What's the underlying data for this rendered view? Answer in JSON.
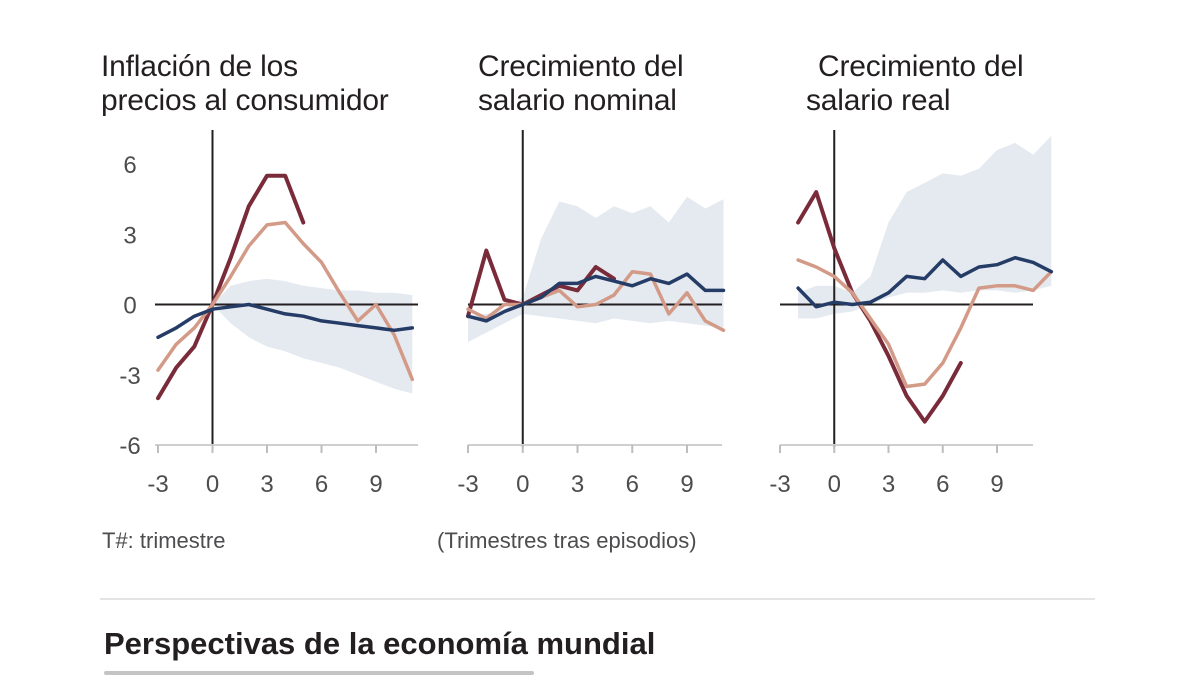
{
  "header_fragment": {
    "text": ""
  },
  "footnotes": {
    "left": "T#: trimestre",
    "center": "(Trimestres tras episodios)"
  },
  "footer": {
    "title": "Perspectivas de la economía mundial"
  },
  "colors": {
    "dark_red": "#7a2b3a",
    "light_red": "#d39a87",
    "navy": "#253c66",
    "band": "#e5eaf1",
    "axis": "#231f20"
  },
  "chart_data": [
    {
      "type": "line",
      "title": [
        "Inflación de los",
        "precios al consumidor"
      ],
      "xlim": [
        -3,
        11
      ],
      "ylim": [
        -6,
        6
      ],
      "xticks": [
        -3,
        0,
        3,
        6,
        9
      ],
      "yticks": [
        6,
        3,
        0,
        -3,
        -6
      ],
      "band": {
        "x": [
          0,
          1,
          2,
          3,
          4,
          5,
          6,
          7,
          8,
          9,
          10,
          11
        ],
        "upper": [
          0,
          0.8,
          1.0,
          1.1,
          1.0,
          0.8,
          0.7,
          0.6,
          0.6,
          0.5,
          0.5,
          0.4
        ],
        "lower": [
          0,
          -0.8,
          -1.4,
          -1.8,
          -2.0,
          -2.3,
          -2.5,
          -2.7,
          -3.0,
          -3.3,
          -3.6,
          -3.8
        ]
      },
      "series": [
        {
          "color_key": "dark_red",
          "x": [
            -3,
            -2,
            -1,
            0,
            1,
            2,
            3,
            4,
            5
          ],
          "values": [
            -4.0,
            -2.7,
            -1.8,
            0.0,
            2.0,
            4.2,
            5.5,
            5.5,
            3.5
          ]
        },
        {
          "color_key": "light_red",
          "x": [
            -3,
            -2,
            -1,
            0,
            1,
            2,
            3,
            4,
            5,
            6,
            7,
            8,
            9,
            10,
            11
          ],
          "values": [
            -2.8,
            -1.7,
            -1.0,
            0.0,
            1.2,
            2.5,
            3.4,
            3.5,
            2.6,
            1.8,
            0.5,
            -0.7,
            0.0,
            -1.3,
            -3.2
          ]
        },
        {
          "color_key": "navy",
          "x": [
            -3,
            -2,
            -1,
            0,
            1,
            2,
            3,
            4,
            5,
            6,
            7,
            8,
            9,
            10,
            11
          ],
          "values": [
            -1.4,
            -1.0,
            -0.5,
            -0.2,
            -0.1,
            0.0,
            -0.2,
            -0.4,
            -0.5,
            -0.7,
            -0.8,
            -0.9,
            -1.0,
            -1.1,
            -1.0
          ]
        }
      ]
    },
    {
      "type": "line",
      "title": [
        "Crecimiento del",
        "salario nominal"
      ],
      "xlim": [
        -3,
        11
      ],
      "ylim": [
        -6,
        6
      ],
      "xticks": [
        -3,
        0,
        3,
        6,
        9
      ],
      "yticks": [
        6,
        3,
        0,
        -3,
        -6
      ],
      "band": {
        "x": [
          -3,
          -2,
          -1,
          0,
          1,
          2,
          3,
          4,
          5,
          6,
          7,
          8,
          9,
          10,
          11
        ],
        "upper": [
          -0.5,
          -0.4,
          -0.2,
          0.3,
          2.8,
          4.4,
          4.2,
          3.7,
          4.2,
          3.9,
          4.2,
          3.5,
          4.6,
          4.1,
          4.5
        ],
        "lower": [
          -1.6,
          -1.2,
          -0.8,
          -0.4,
          -0.5,
          -0.6,
          -0.7,
          -0.8,
          -0.6,
          -0.7,
          -0.8,
          -0.7,
          -0.8,
          -0.9,
          -1.0
        ]
      },
      "series": [
        {
          "color_key": "dark_red",
          "x": [
            -3,
            -2,
            -1,
            0,
            1,
            2,
            3,
            4,
            5
          ],
          "values": [
            -0.5,
            2.3,
            0.2,
            0.0,
            0.4,
            0.8,
            0.6,
            1.6,
            1.1
          ]
        },
        {
          "color_key": "light_red",
          "x": [
            -3,
            -2,
            -1,
            0,
            1,
            2,
            3,
            4,
            5,
            6,
            7,
            8,
            9,
            10,
            11
          ],
          "values": [
            -0.2,
            -0.6,
            0.0,
            0.0,
            0.3,
            0.6,
            -0.1,
            0.0,
            0.4,
            1.4,
            1.3,
            -0.4,
            0.5,
            -0.7,
            -1.1
          ]
        },
        {
          "color_key": "navy",
          "x": [
            -3,
            -2,
            -1,
            0,
            1,
            2,
            3,
            4,
            5,
            6,
            7,
            8,
            9,
            10,
            11
          ],
          "values": [
            -0.5,
            -0.7,
            -0.3,
            0.0,
            0.3,
            0.9,
            0.9,
            1.2,
            1.0,
            0.8,
            1.1,
            0.9,
            1.3,
            0.6,
            0.6
          ]
        }
      ]
    },
    {
      "type": "line",
      "title": [
        "Crecimiento del",
        "salario real"
      ],
      "xlim": [
        -3,
        11
      ],
      "ylim": [
        -6,
        6
      ],
      "xticks": [
        -3,
        0,
        3,
        6,
        9
      ],
      "yticks": [
        6,
        3,
        0,
        -3,
        -6
      ],
      "band": {
        "x": [
          -2,
          -1,
          0,
          1,
          2,
          3,
          4,
          5,
          6,
          7,
          8,
          9,
          10,
          11,
          12
        ],
        "upper": [
          0.5,
          0.8,
          0.8,
          0.5,
          1.2,
          3.5,
          4.8,
          5.2,
          5.6,
          5.5,
          5.8,
          6.6,
          6.9,
          6.4,
          7.2
        ],
        "lower": [
          -0.6,
          -0.6,
          -0.4,
          -0.3,
          0.0,
          0.3,
          0.5,
          0.5,
          0.6,
          0.5,
          0.6,
          0.6,
          0.5,
          0.6,
          0.8
        ]
      },
      "series": [
        {
          "color_key": "dark_red",
          "x": [
            -2,
            -1,
            0,
            1,
            2,
            3,
            4,
            5,
            6,
            7
          ],
          "values": [
            3.5,
            4.8,
            2.4,
            0.5,
            -0.7,
            -2.2,
            -3.9,
            -5.0,
            -3.9,
            -2.5
          ]
        },
        {
          "color_key": "light_red",
          "x": [
            -2,
            -1,
            0,
            1,
            2,
            3,
            4,
            5,
            6,
            7,
            8,
            9,
            10,
            11,
            12
          ],
          "values": [
            1.9,
            1.6,
            1.2,
            0.5,
            -0.6,
            -1.7,
            -3.5,
            -3.4,
            -2.5,
            -1.0,
            0.7,
            0.8,
            0.8,
            0.6,
            1.4
          ]
        },
        {
          "color_key": "navy",
          "x": [
            -2,
            -1,
            0,
            1,
            2,
            3,
            4,
            5,
            6,
            7,
            8,
            9,
            10,
            11,
            12
          ],
          "values": [
            0.7,
            -0.1,
            0.1,
            0.0,
            0.1,
            0.5,
            1.2,
            1.1,
            1.9,
            1.2,
            1.6,
            1.7,
            2.0,
            1.8,
            1.4
          ]
        }
      ]
    }
  ]
}
